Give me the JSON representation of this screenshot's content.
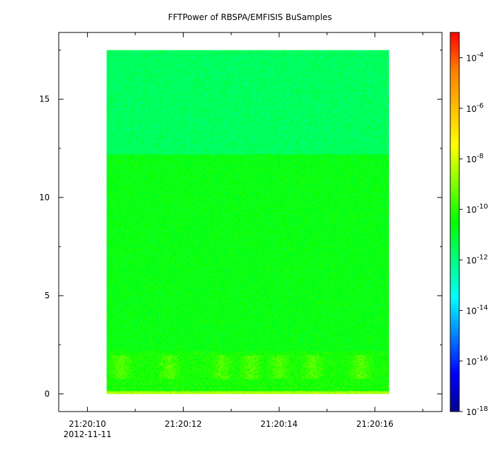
{
  "chart_data": {
    "type": "heatmap",
    "title": "FFTPower of RBSPA/EMFISIS  BuSamples",
    "xlabel": "",
    "ylabel": "",
    "x_date": "2012-11-11",
    "x_ticks": [
      "21:20:10",
      "21:20:12",
      "21:20:14",
      "21:20:16"
    ],
    "x_range": [
      "21:20:09.4",
      "21:20:17.4"
    ],
    "data_x_range": [
      "21:20:10.4",
      "21:20:16.3"
    ],
    "y_ticks": [
      0,
      5,
      10,
      15
    ],
    "ylim": [
      -0.9,
      18.4
    ],
    "data_y_range": [
      0,
      17.5
    ],
    "colorbar": {
      "scale": "log",
      "range": [
        "1e-18",
        "1e-3"
      ],
      "tick_values": [
        -18,
        -16,
        -14,
        -12,
        -10,
        -8,
        -6,
        -4
      ],
      "tick_labels": [
        "10-18",
        "10-16",
        "10-14",
        "10-12",
        "10-10",
        "10-8",
        "10-6",
        "10-4"
      ],
      "colormap": [
        "#00008f",
        "#0000ff",
        "#0080ff",
        "#00ffff",
        "#00ff80",
        "#00ff00",
        "#80ff00",
        "#ffff00",
        "#ffbf00",
        "#ff8000",
        "#ff0000"
      ]
    },
    "bands": [
      {
        "y_from": 0,
        "y_to": 0.15,
        "log10_power": -8.5,
        "note": "bottom edge"
      },
      {
        "y_from": 0.15,
        "y_to": 2.2,
        "log10_power": -10.3,
        "note": "low frequency with bursts"
      },
      {
        "y_from": 2.2,
        "y_to": 12.2,
        "log10_power": -10.6
      },
      {
        "y_from": 12.2,
        "y_to": 17.5,
        "log10_power": -11.6
      }
    ],
    "bursts_x": [
      "21:20:10.7",
      "21:20:11.7",
      "21:20:12.8",
      "21:20:13.4",
      "21:20:14.0",
      "21:20:14.7",
      "21:20:15.7"
    ],
    "grid": false
  }
}
